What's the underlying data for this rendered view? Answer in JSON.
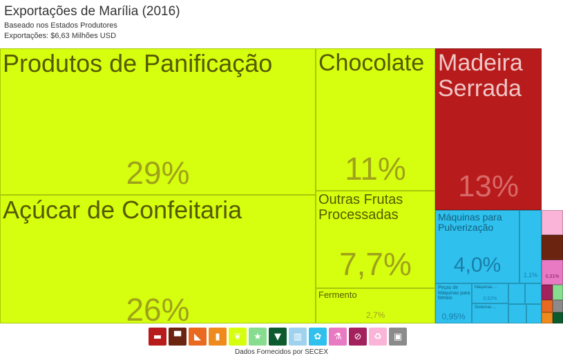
{
  "header": {
    "title": "Exportações de Marília (2016)",
    "subtitle1": "Baseado nos Estados Produtores",
    "subtitle2": "Exportações: $6,63 Milhões USD"
  },
  "footer": {
    "source": "Dados Fornecidos por SECEX"
  },
  "chart_data": {
    "type": "treemap",
    "title": "Exportações de Marília (2016)",
    "total": "$6,63 Milhões USD",
    "items": [
      {
        "label": "Produtos de Panificação",
        "value": 29,
        "value_label": "29%",
        "color": "#d6ff0f"
      },
      {
        "label": "Açúcar de Confeitaria",
        "value": 26,
        "value_label": "26%",
        "color": "#d6ff0f"
      },
      {
        "label": "Chocolate",
        "value": 11,
        "value_label": "11%",
        "color": "#d6ff0f"
      },
      {
        "label": "Outras Frutas Processadas",
        "value": 7.7,
        "value_label": "7,7%",
        "color": "#d6ff0f"
      },
      {
        "label": "Fermento",
        "value": 2.7,
        "value_label": "2,7%",
        "color": "#d6ff0f"
      },
      {
        "label": "Madeira Serrada",
        "value": 13,
        "value_label": "13%",
        "color": "#b81b1b"
      },
      {
        "label": "Máquinas para Pulverização",
        "value": 4.0,
        "value_label": "4,0%",
        "color": "#2fc0ee"
      },
      {
        "label": "",
        "value": 1.1,
        "value_label": "1,1%",
        "color": "#2fc0ee"
      },
      {
        "label": "Peças de Máquinas para Metais",
        "value": 0.95,
        "value_label": "0,95%",
        "color": "#2fc0ee"
      },
      {
        "label": "Máquinas ...",
        "value": 0.52,
        "value_label": "0,52%",
        "color": "#2fc0ee"
      },
      {
        "label": "Sistemas ...",
        "value": null,
        "value_label": "",
        "color": "#2fc0ee"
      },
      {
        "label": "",
        "value": 0.31,
        "value_label": "0,31%",
        "color": "#e87ac3"
      }
    ]
  },
  "legend": [
    {
      "icon": "vehicles-icon",
      "glyph": "▬",
      "color": "#b81b1b"
    },
    {
      "icon": "furniture-icon",
      "glyph": "▀",
      "color": "#6b2410"
    },
    {
      "icon": "stone-icon",
      "glyph": "◣",
      "color": "#e8691f"
    },
    {
      "icon": "chemicals-icon",
      "glyph": "▮",
      "color": "#ef8b1c"
    },
    {
      "icon": "vegetable-icon",
      "glyph": "❦",
      "color": "#d6ff0f"
    },
    {
      "icon": "animal-icon",
      "glyph": "★",
      "color": "#87dd8f"
    },
    {
      "icon": "textiles-icon",
      "glyph": "▼",
      "color": "#0c5b2e"
    },
    {
      "icon": "footwear-icon",
      "glyph": "▥",
      "color": "#9fd2ee"
    },
    {
      "icon": "machines-icon",
      "glyph": "✿",
      "color": "#2fc0ee"
    },
    {
      "icon": "instruments-icon",
      "glyph": "⚗",
      "color": "#e87ac3"
    },
    {
      "icon": "weapons-icon",
      "glyph": "⊘",
      "color": "#a3215c"
    },
    {
      "icon": "plastics-icon",
      "glyph": "♻",
      "color": "#f9b4d7"
    },
    {
      "icon": "misc-icon",
      "glyph": "▣",
      "color": "#8b8b8b"
    }
  ]
}
